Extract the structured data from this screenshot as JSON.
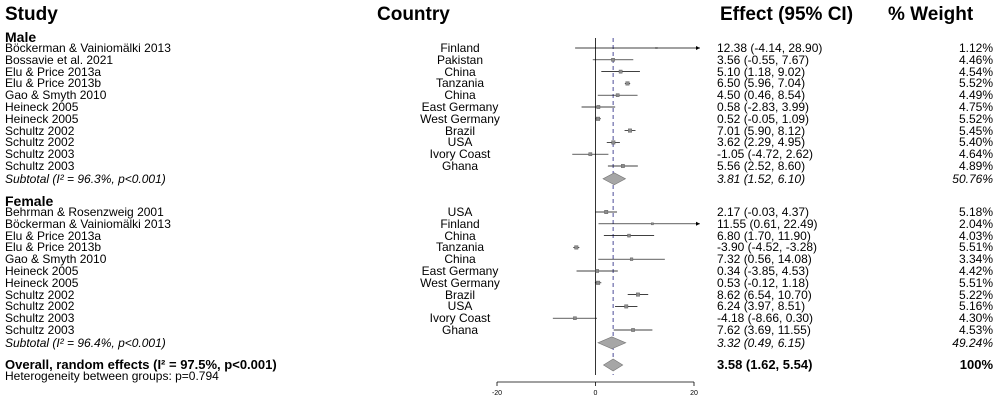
{
  "headers": {
    "study": "Study",
    "country": "Country",
    "effect": "Effect (95% CI)",
    "weight": "% Weight"
  },
  "groups": [
    {
      "name": "Male",
      "subtotal": {
        "label": "Subtotal (I²  = 96.3%, p<0.001)",
        "ci_text": "3.81 (1.52, 6.10)",
        "weight": "50.76%"
      },
      "rows": [
        {
          "study": "Böckerman & Vainiomälki 2013",
          "country": "Finland",
          "ci_text": "12.38 (-4.14, 28.90)",
          "weight": "1.12%"
        },
        {
          "study": "Bossavie et al. 2021",
          "country": "Pakistan",
          "ci_text": "3.56 (-0.55, 7.67)",
          "weight": "4.46%"
        },
        {
          "study": "Elu & Price 2013a",
          "country": "China",
          "ci_text": "5.10 (1.18, 9.02)",
          "weight": "4.54%"
        },
        {
          "study": "Elu & Price 2013b",
          "country": "Tanzania",
          "ci_text": "6.50 (5.96, 7.04)",
          "weight": "5.52%"
        },
        {
          "study": "Gao & Smyth 2010",
          "country": "China",
          "ci_text": "4.50 (0.46, 8.54)",
          "weight": "4.49%"
        },
        {
          "study": "Heineck 2005",
          "country": "East Germany",
          "ci_text": "0.58 (-2.83, 3.99)",
          "weight": "4.75%"
        },
        {
          "study": "Heineck 2005",
          "country": "West Germany",
          "ci_text": "0.52 (-0.05, 1.09)",
          "weight": "5.52%"
        },
        {
          "study": "Schultz 2002",
          "country": "Brazil",
          "ci_text": "7.01 (5.90, 8.12)",
          "weight": "5.45%"
        },
        {
          "study": "Schultz 2002",
          "country": "USA",
          "ci_text": "3.62 (2.29, 4.95)",
          "weight": "5.40%"
        },
        {
          "study": "Schultz 2003",
          "country": "Ivory Coast",
          "ci_text": "-1.05 (-4.72, 2.62)",
          "weight": "4.64%"
        },
        {
          "study": "Schultz 2003",
          "country": "Ghana",
          "ci_text": "5.56 (2.52, 8.60)",
          "weight": "4.89%"
        }
      ]
    },
    {
      "name": "Female",
      "subtotal": {
        "label": "Subtotal (I²  = 96.4%, p<0.001)",
        "ci_text": "3.32 (0.49, 6.15)",
        "weight": "49.24%"
      },
      "rows": [
        {
          "study": "Behrman & Rosenzweig 2001",
          "country": "USA",
          "ci_text": "2.17 (-0.03, 4.37)",
          "weight": "5.18%"
        },
        {
          "study": "Böckerman & Vainiomälki 2013",
          "country": "Finland",
          "ci_text": "11.55 (0.61, 22.49)",
          "weight": "2.04%"
        },
        {
          "study": "Elu & Price 2013a",
          "country": "China",
          "ci_text": "6.80 (1.70, 11.90)",
          "weight": "4.03%"
        },
        {
          "study": "Elu & Price 2013b",
          "country": "Tanzania",
          "ci_text": "-3.90 (-4.52, -3.28)",
          "weight": "5.51%"
        },
        {
          "study": "Gao & Smyth 2010",
          "country": "China",
          "ci_text": "7.32 (0.56, 14.08)",
          "weight": "3.34%"
        },
        {
          "study": "Heineck 2005",
          "country": "East Germany",
          "ci_text": "0.34 (-3.85, 4.53)",
          "weight": "4.42%"
        },
        {
          "study": "Heineck 2005",
          "country": "West Germany",
          "ci_text": "0.53 (-0.12, 1.18)",
          "weight": "5.51%"
        },
        {
          "study": "Schultz 2002",
          "country": "Brazil",
          "ci_text": "8.62 (6.54, 10.70)",
          "weight": "5.22%"
        },
        {
          "study": "Schultz 2002",
          "country": "USA",
          "ci_text": "6.24 (3.97, 8.51)",
          "weight": "5.16%"
        },
        {
          "study": "Schultz 2003",
          "country": "Ivory Coast",
          "ci_text": "-4.18 (-8.66, 0.30)",
          "weight": "4.30%"
        },
        {
          "study": "Schultz 2003",
          "country": "Ghana",
          "ci_text": "7.62 (3.69, 11.55)",
          "weight": "4.53%"
        }
      ]
    }
  ],
  "overall": {
    "label": "Overall, random effects (I²  = 97.5%, p<0.001)",
    "ci_text": "3.58 (1.62, 5.54)",
    "weight": "100%"
  },
  "heterogeneity_note": "Heterogeneity between groups: p=0.794",
  "colors": {
    "diamond": "#a6a6a6",
    "box": "#8c8c8c",
    "line": "#000000",
    "overall_line": "#4d4d99",
    "axis": "#000000"
  },
  "chart_data": {
    "type": "forest",
    "xlim": [
      -20,
      20
    ],
    "xticks": [
      -20,
      0,
      20
    ],
    "null_line": 0,
    "overall_line": 3.58,
    "series": [
      {
        "name": "Male",
        "points": [
          {
            "est": 12.38,
            "lo": -4.14,
            "hi": 28.9,
            "w": 1.12
          },
          {
            "est": 3.56,
            "lo": -0.55,
            "hi": 7.67,
            "w": 4.46
          },
          {
            "est": 5.1,
            "lo": 1.18,
            "hi": 9.02,
            "w": 4.54
          },
          {
            "est": 6.5,
            "lo": 5.96,
            "hi": 7.04,
            "w": 5.52
          },
          {
            "est": 4.5,
            "lo": 0.46,
            "hi": 8.54,
            "w": 4.49
          },
          {
            "est": 0.58,
            "lo": -2.83,
            "hi": 3.99,
            "w": 4.75
          },
          {
            "est": 0.52,
            "lo": -0.05,
            "hi": 1.09,
            "w": 5.52
          },
          {
            "est": 7.01,
            "lo": 5.9,
            "hi": 8.12,
            "w": 5.45
          },
          {
            "est": 3.62,
            "lo": 2.29,
            "hi": 4.95,
            "w": 5.4
          },
          {
            "est": -1.05,
            "lo": -4.72,
            "hi": 2.62,
            "w": 4.64
          },
          {
            "est": 5.56,
            "lo": 2.52,
            "hi": 8.6,
            "w": 4.89
          }
        ],
        "subtotal": {
          "est": 3.81,
          "lo": 1.52,
          "hi": 6.1
        }
      },
      {
        "name": "Female",
        "points": [
          {
            "est": 2.17,
            "lo": -0.03,
            "hi": 4.37,
            "w": 5.18
          },
          {
            "est": 11.55,
            "lo": 0.61,
            "hi": 22.49,
            "w": 2.04
          },
          {
            "est": 6.8,
            "lo": 1.7,
            "hi": 11.9,
            "w": 4.03
          },
          {
            "est": -3.9,
            "lo": -4.52,
            "hi": -3.28,
            "w": 5.51
          },
          {
            "est": 7.32,
            "lo": 0.56,
            "hi": 14.08,
            "w": 3.34
          },
          {
            "est": 0.34,
            "lo": -3.85,
            "hi": 4.53,
            "w": 4.42
          },
          {
            "est": 0.53,
            "lo": -0.12,
            "hi": 1.18,
            "w": 5.51
          },
          {
            "est": 8.62,
            "lo": 6.54,
            "hi": 10.7,
            "w": 5.22
          },
          {
            "est": 6.24,
            "lo": 3.97,
            "hi": 8.51,
            "w": 5.16
          },
          {
            "est": -4.18,
            "lo": -8.66,
            "hi": 0.3,
            "w": 4.3
          },
          {
            "est": 7.62,
            "lo": 3.69,
            "hi": 11.55,
            "w": 4.53
          }
        ],
        "subtotal": {
          "est": 3.32,
          "lo": 0.49,
          "hi": 6.15
        }
      }
    ],
    "overall": {
      "est": 3.58,
      "lo": 1.62,
      "hi": 5.54
    }
  }
}
